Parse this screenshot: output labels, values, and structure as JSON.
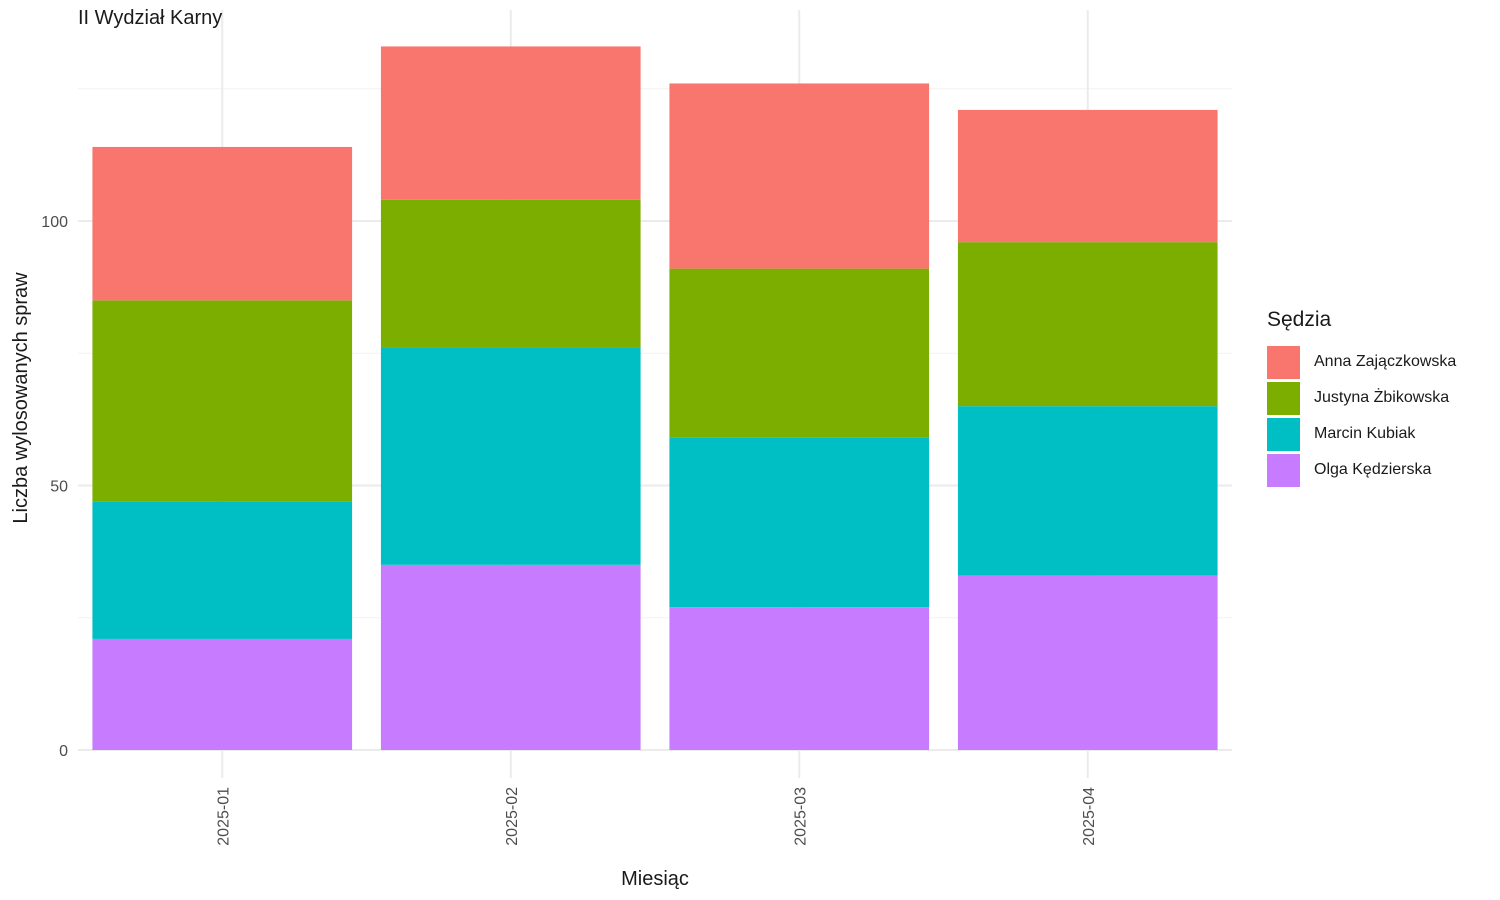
{
  "chart_data": {
    "type": "bar",
    "stacked": true,
    "title": "II Wydział Karny",
    "xlabel": "Miesiąc",
    "ylabel": "Liczba wylosowanych spraw",
    "categories": [
      "2025-01",
      "2025-02",
      "2025-03",
      "2025-04"
    ],
    "ylim": [
      0,
      140
    ],
    "yticks": [
      0,
      50,
      100
    ],
    "grid": true,
    "legend": {
      "title": "Sędzia",
      "position": "right"
    },
    "series": [
      {
        "name": "Olga Kędzierska",
        "color": "#C77CFF",
        "values": [
          21,
          35,
          27,
          33
        ]
      },
      {
        "name": "Marcin Kubiak",
        "color": "#00BFC4",
        "values": [
          26,
          41,
          32,
          32
        ]
      },
      {
        "name": "Justyna Żbikowska",
        "color": "#7CAE00",
        "values": [
          38,
          28,
          32,
          31
        ]
      },
      {
        "name": "Anna Zajączkowska",
        "color": "#F8766D",
        "values": [
          29,
          29,
          35,
          25
        ]
      }
    ]
  }
}
